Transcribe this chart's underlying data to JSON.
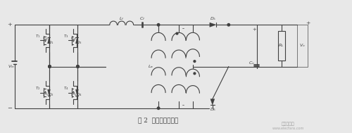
{
  "title": "图 2  整流柜拓扑简图",
  "line_color": "#404040",
  "bg_color": "#e8e8e8",
  "fig_width": 5.0,
  "fig_height": 1.89,
  "dpi": 100,
  "watermark": "电子发烧友",
  "watermark2": "www.elecfans.com",
  "lw": 0.8
}
